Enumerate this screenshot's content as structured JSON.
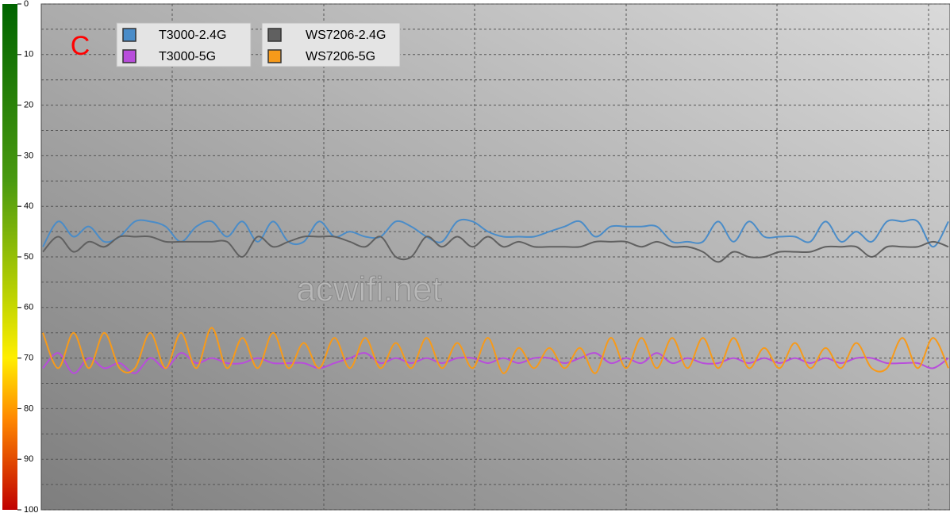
{
  "chart_data": {
    "type": "line",
    "annotation": "C",
    "watermark": "acwifi.net",
    "ylim": [
      0,
      100
    ],
    "y_inverted": true,
    "yticks": [
      0,
      10,
      20,
      30,
      40,
      50,
      60,
      70,
      80,
      90,
      100
    ],
    "yminorticks": [
      5,
      15,
      25,
      35,
      45,
      55,
      65,
      75,
      85,
      95
    ],
    "grid": true,
    "legend": "upper left",
    "series": [
      {
        "name": "T3000-2.4G",
        "color": "#4a8cc8",
        "values": [
          48,
          43,
          46,
          44,
          47,
          46,
          43,
          43,
          44,
          47,
          44,
          43,
          46,
          43,
          47,
          43,
          47,
          47,
          43,
          46,
          45,
          46,
          46,
          43,
          44,
          46,
          47,
          43,
          43,
          45,
          46,
          46,
          46,
          45,
          44,
          43,
          46,
          44,
          44,
          44,
          44,
          47,
          47,
          47,
          43,
          47,
          43,
          46,
          46,
          46,
          47,
          43,
          47,
          45,
          47,
          43,
          43,
          43,
          48,
          43
        ]
      },
      {
        "name": "T3000-5G",
        "color": "#b84ddb",
        "values": [
          72,
          69,
          73,
          70,
          72,
          71,
          73,
          70,
          72,
          69,
          71,
          70,
          71,
          71,
          70,
          71,
          71,
          71,
          72,
          71,
          70,
          69,
          71,
          70,
          71,
          70,
          71,
          70,
          70,
          71,
          70,
          71,
          70,
          70,
          71,
          70,
          69,
          71,
          70,
          71,
          69,
          71,
          70,
          71,
          71,
          70,
          71,
          70,
          71,
          70,
          71,
          70,
          71,
          70,
          70,
          71,
          71,
          71,
          72,
          70
        ]
      },
      {
        "name": "WS7206-2.4G",
        "color": "#606060",
        "values": [
          49,
          46,
          49,
          47,
          48,
          46,
          46,
          46,
          47,
          47,
          47,
          47,
          47,
          50,
          46,
          48,
          47,
          46,
          46,
          46,
          47,
          48,
          46,
          50,
          50,
          46,
          48,
          46,
          48,
          46,
          48,
          47,
          48,
          48,
          48,
          48,
          47,
          47,
          47,
          48,
          47,
          48,
          48,
          49,
          51,
          49,
          50,
          50,
          49,
          49,
          49,
          48,
          48,
          48,
          50,
          48,
          48,
          48,
          47,
          48
        ]
      },
      {
        "name": "WS7206-5G",
        "color": "#f79a1a",
        "values": [
          65,
          72,
          65,
          72,
          65,
          72,
          72,
          65,
          72,
          65,
          72,
          64,
          72,
          66,
          72,
          65,
          72,
          67,
          72,
          66,
          72,
          66,
          72,
          67,
          72,
          66,
          72,
          67,
          72,
          66,
          73,
          68,
          72,
          68,
          72,
          68,
          73,
          66,
          72,
          66,
          72,
          66,
          72,
          66,
          72,
          66,
          72,
          68,
          72,
          67,
          72,
          68,
          72,
          67,
          72,
          72,
          66,
          72,
          66,
          72
        ]
      }
    ]
  }
}
